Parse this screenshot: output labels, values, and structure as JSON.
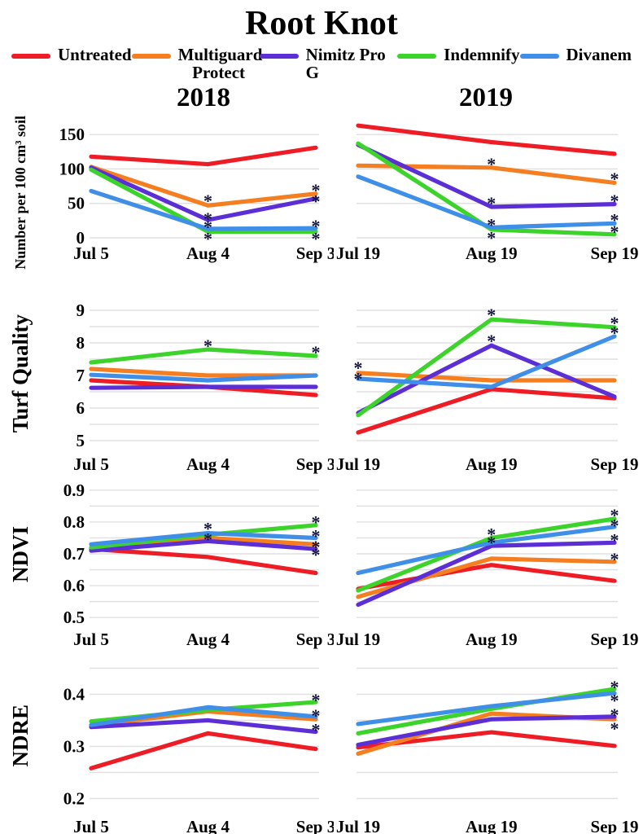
{
  "title": "Root Knot",
  "years": [
    "2018",
    "2019"
  ],
  "marker": "*",
  "colors": {
    "grid": "#e0e0e0",
    "asterisk": "#14143c",
    "text": "#000000"
  },
  "legend": [
    {
      "label": "Untreated",
      "color": "#ee1c25"
    },
    {
      "label": "Multiguard Protect",
      "color": "#f57e20"
    },
    {
      "label": "Nimitz Pro G",
      "color": "#5b2ed6"
    },
    {
      "label": "Indemnify",
      "color": "#3cd32b"
    },
    {
      "label": "Divanem",
      "color": "#3f8fe8"
    }
  ],
  "rows": [
    {
      "id": "count",
      "ylabel": "Number per 100 cm³ soil",
      "ylim": [
        0,
        168
      ],
      "grid": [
        0,
        50,
        100,
        150
      ],
      "yticks": [
        {
          "v": 0,
          "label": "0"
        },
        {
          "v": 50,
          "label": "50"
        },
        {
          "v": 100,
          "label": "100"
        },
        {
          "v": 150,
          "label": "150"
        }
      ]
    },
    {
      "id": "turf-quality",
      "ylabel": "Turf Quality",
      "ylim": [
        4.75,
        9.25
      ],
      "grid": [
        5,
        5.5,
        6,
        6.5,
        7,
        7.5,
        8,
        8.5,
        9
      ],
      "yticks": [
        {
          "v": 5,
          "label": "5"
        },
        {
          "v": 6,
          "label": "6"
        },
        {
          "v": 7,
          "label": "7"
        },
        {
          "v": 8,
          "label": "8"
        },
        {
          "v": 9,
          "label": "9"
        }
      ]
    },
    {
      "id": "ndvi",
      "ylabel": "NDVI",
      "ylim": [
        0.48,
        0.92
      ],
      "grid": [
        0.5,
        0.55,
        0.6,
        0.65,
        0.7,
        0.75,
        0.8,
        0.85,
        0.9
      ],
      "yticks": [
        {
          "v": 0.5,
          "label": "0.5"
        },
        {
          "v": 0.6,
          "label": "0.6"
        },
        {
          "v": 0.7,
          "label": "0.7"
        },
        {
          "v": 0.8,
          "label": "0.8"
        },
        {
          "v": 0.9,
          "label": "0.9"
        }
      ]
    },
    {
      "id": "ndre",
      "ylabel": "NDRE",
      "ylim": [
        0.185,
        0.46
      ],
      "grid": [
        0.2,
        0.25,
        0.3,
        0.35,
        0.4,
        0.45
      ],
      "yticks": [
        {
          "v": 0.2,
          "label": "0.2"
        },
        {
          "v": 0.3,
          "label": "0.3"
        },
        {
          "v": 0.4,
          "label": "0.4"
        }
      ]
    }
  ],
  "chart_data": [
    {
      "type": "line",
      "row": "count",
      "year": "2018",
      "x": [
        "Jul 5",
        "Aug 4",
        "Sep 3"
      ],
      "series": [
        {
          "name": "Untreated",
          "values": [
            118,
            107,
            131
          ]
        },
        {
          "name": "Multiguard Protect",
          "values": [
            103,
            47,
            64
          ]
        },
        {
          "name": "Nimitz Pro G",
          "values": [
            102,
            26,
            57
          ]
        },
        {
          "name": "Indemnify",
          "values": [
            99,
            9,
            9
          ]
        },
        {
          "name": "Divanem",
          "values": [
            68,
            13,
            14
          ]
        }
      ],
      "asterisks": [
        [
          1,
          57
        ],
        [
          1,
          31
        ],
        [
          1,
          19
        ],
        [
          1,
          2
        ],
        [
          2,
          72
        ],
        [
          2,
          56
        ],
        [
          2,
          20
        ],
        [
          2,
          2
        ]
      ]
    },
    {
      "type": "line",
      "row": "count",
      "year": "2019",
      "x": [
        "Jul 19",
        "Aug 19",
        "Sep 19"
      ],
      "series": [
        {
          "name": "Untreated",
          "values": [
            163,
            139,
            122
          ]
        },
        {
          "name": "Multiguard Protect",
          "values": [
            105,
            102,
            80
          ]
        },
        {
          "name": "Nimitz Pro G",
          "values": [
            135,
            45,
            49
          ]
        },
        {
          "name": "Indemnify",
          "values": [
            137,
            12,
            5
          ]
        },
        {
          "name": "Divanem",
          "values": [
            89,
            15,
            21
          ]
        }
      ],
      "asterisks": [
        [
          1,
          110
        ],
        [
          1,
          53
        ],
        [
          1,
          22
        ],
        [
          1,
          3
        ],
        [
          2,
          89
        ],
        [
          2,
          57
        ],
        [
          2,
          29
        ],
        [
          2,
          12
        ]
      ]
    },
    {
      "type": "line",
      "row": "turf-quality",
      "year": "2018",
      "x": [
        "Jul 5",
        "Aug 4",
        "Sep 3"
      ],
      "series": [
        {
          "name": "Untreated",
          "values": [
            6.85,
            6.65,
            6.4
          ]
        },
        {
          "name": "Multiguard Protect",
          "values": [
            7.2,
            7.0,
            7.0
          ]
        },
        {
          "name": "Nimitz Pro G",
          "values": [
            6.62,
            6.65,
            6.65
          ]
        },
        {
          "name": "Indemnify",
          "values": [
            7.4,
            7.8,
            7.6
          ]
        },
        {
          "name": "Divanem",
          "values": [
            7.02,
            6.85,
            7.0
          ]
        }
      ],
      "asterisks": [
        [
          1,
          7.97
        ],
        [
          2,
          7.77
        ]
      ]
    },
    {
      "type": "line",
      "row": "turf-quality",
      "year": "2019",
      "x": [
        "Jul 19",
        "Aug 19",
        "Sep 19"
      ],
      "series": [
        {
          "name": "Untreated",
          "values": [
            5.25,
            6.58,
            6.3
          ]
        },
        {
          "name": "Multiguard Protect",
          "values": [
            7.08,
            6.85,
            6.85
          ]
        },
        {
          "name": "Nimitz Pro G",
          "values": [
            5.85,
            7.92,
            6.35
          ]
        },
        {
          "name": "Indemnify",
          "values": [
            5.78,
            8.72,
            8.48
          ]
        },
        {
          "name": "Divanem",
          "values": [
            6.9,
            6.65,
            8.2
          ]
        }
      ],
      "asterisks": [
        [
          0,
          7.3
        ],
        [
          0,
          6.96
        ],
        [
          1,
          8.93
        ],
        [
          1,
          8.12
        ],
        [
          2,
          8.67
        ],
        [
          2,
          8.38
        ]
      ]
    },
    {
      "type": "line",
      "row": "ndvi",
      "year": "2018",
      "x": [
        "Jul 5",
        "Aug 4",
        "Sep 3"
      ],
      "series": [
        {
          "name": "Untreated",
          "values": [
            0.715,
            0.69,
            0.64
          ]
        },
        {
          "name": "Multiguard Protect",
          "values": [
            0.72,
            0.75,
            0.73
          ]
        },
        {
          "name": "Nimitz Pro G",
          "values": [
            0.71,
            0.74,
            0.715
          ]
        },
        {
          "name": "Indemnify",
          "values": [
            0.72,
            0.76,
            0.79
          ]
        },
        {
          "name": "Divanem",
          "values": [
            0.73,
            0.765,
            0.75
          ]
        }
      ],
      "asterisks": [
        [
          1,
          0.786
        ],
        [
          1,
          0.753
        ],
        [
          2,
          0.806
        ],
        [
          2,
          0.763
        ],
        [
          2,
          0.728
        ],
        [
          2,
          0.704
        ]
      ]
    },
    {
      "type": "line",
      "row": "ndvi",
      "year": "2019",
      "x": [
        "Jul 19",
        "Aug 19",
        "Sep 19"
      ],
      "series": [
        {
          "name": "Untreated",
          "values": [
            0.59,
            0.665,
            0.615
          ]
        },
        {
          "name": "Multiguard Protect",
          "values": [
            0.565,
            0.685,
            0.675
          ]
        },
        {
          "name": "Nimitz Pro G",
          "values": [
            0.54,
            0.725,
            0.735
          ]
        },
        {
          "name": "Indemnify",
          "values": [
            0.585,
            0.75,
            0.81
          ]
        },
        {
          "name": "Divanem",
          "values": [
            0.64,
            0.735,
            0.785
          ]
        }
      ],
      "asterisks": [
        [
          1,
          0.768
        ],
        [
          1,
          0.742
        ],
        [
          2,
          0.828
        ],
        [
          2,
          0.796
        ],
        [
          2,
          0.75
        ],
        [
          2,
          0.69
        ]
      ]
    },
    {
      "type": "line",
      "row": "ndre",
      "year": "2018",
      "x": [
        "Jul 5",
        "Aug 4",
        "Sep 3"
      ],
      "series": [
        {
          "name": "Untreated",
          "values": [
            0.258,
            0.325,
            0.295
          ]
        },
        {
          "name": "Multiguard Protect",
          "values": [
            0.34,
            0.367,
            0.352
          ]
        },
        {
          "name": "Nimitz Pro G",
          "values": [
            0.337,
            0.35,
            0.328
          ]
        },
        {
          "name": "Indemnify",
          "values": [
            0.348,
            0.37,
            0.385
          ]
        },
        {
          "name": "Divanem",
          "values": [
            0.341,
            0.375,
            0.357
          ]
        }
      ],
      "asterisks": [
        [
          2,
          0.393
        ],
        [
          2,
          0.363
        ],
        [
          2,
          0.336
        ]
      ]
    },
    {
      "type": "line",
      "row": "ndre",
      "year": "2019",
      "x": [
        "Jul 19",
        "Aug 19",
        "Sep 19"
      ],
      "series": [
        {
          "name": "Untreated",
          "values": [
            0.298,
            0.327,
            0.301
          ]
        },
        {
          "name": "Multiguard Protect",
          "values": [
            0.286,
            0.363,
            0.352
          ]
        },
        {
          "name": "Nimitz Pro G",
          "values": [
            0.303,
            0.352,
            0.357
          ]
        },
        {
          "name": "Indemnify",
          "values": [
            0.325,
            0.372,
            0.41
          ]
        },
        {
          "name": "Divanem",
          "values": [
            0.343,
            0.377,
            0.402
          ]
        }
      ],
      "asterisks": [
        [
          2,
          0.418
        ],
        [
          2,
          0.392
        ],
        [
          2,
          0.365
        ],
        [
          2,
          0.338
        ]
      ]
    }
  ]
}
